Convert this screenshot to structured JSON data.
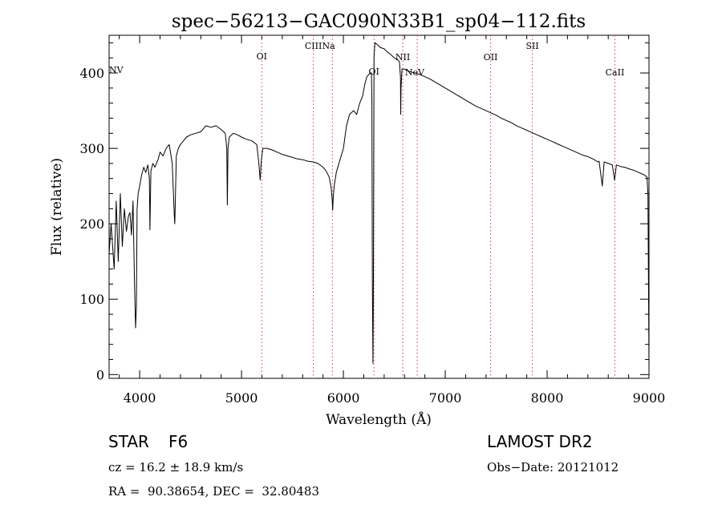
{
  "chart_data": {
    "type": "line",
    "title": "spec−56213−GAC090N33B1_sp04−112.fits",
    "xlabel": "Wavelength (Å)",
    "ylabel": "Flux (relative)",
    "xlim": [
      3700,
      9000
    ],
    "ylim": [
      -5,
      450
    ],
    "xticks": [
      4000,
      5000,
      6000,
      7000,
      8000,
      9000
    ],
    "yticks": [
      0,
      100,
      200,
      300,
      400
    ],
    "grid": false,
    "series": [
      {
        "color": "#000000",
        "x": [
          3700,
          3720,
          3750,
          3770,
          3790,
          3810,
          3830,
          3850,
          3870,
          3890,
          3905,
          3920,
          3935,
          3950,
          3960,
          3968,
          3975,
          3985,
          4000,
          4020,
          4040,
          4060,
          4080,
          4095,
          4101,
          4110,
          4130,
          4150,
          4180,
          4200,
          4230,
          4260,
          4290,
          4320,
          4340,
          4345,
          4360,
          4380,
          4400,
          4430,
          4460,
          4500,
          4550,
          4600,
          4650,
          4700,
          4750,
          4800,
          4840,
          4855,
          4861,
          4867,
          4880,
          4920,
          4960,
          5000,
          5050,
          5100,
          5150,
          5170,
          5183,
          5195,
          5210,
          5250,
          5300,
          5350,
          5400,
          5450,
          5500,
          5550,
          5600,
          5650,
          5700,
          5750,
          5800,
          5830,
          5860,
          5880,
          5890,
          5895,
          5900,
          5910,
          5930,
          5960,
          6000,
          6030,
          6060,
          6100,
          6130,
          6160,
          6190,
          6210,
          6230,
          6250,
          6265,
          6275,
          6280,
          6285,
          6290,
          6295,
          6300,
          6310,
          6330,
          6360,
          6400,
          6430,
          6460,
          6500,
          6530,
          6550,
          6560,
          6563,
          6566,
          6575,
          6600,
          6650,
          6700,
          6750,
          6800,
          6850,
          6900,
          6950,
          7000,
          7050,
          7100,
          7150,
          7200,
          7250,
          7300,
          7350,
          7400,
          7450,
          7500,
          7550,
          7600,
          7650,
          7700,
          7750,
          7800,
          7850,
          7900,
          7950,
          8000,
          8050,
          8100,
          8150,
          8200,
          8250,
          8300,
          8350,
          8400,
          8450,
          8498,
          8510,
          8542,
          8560,
          8600,
          8640,
          8662,
          8680,
          8720,
          8760,
          8800,
          8850,
          8900,
          8950,
          8980,
          8990,
          9000
        ],
        "y": [
          160,
          200,
          140,
          230,
          150,
          240,
          170,
          220,
          190,
          210,
          215,
          185,
          230,
          120,
          62,
          90,
          220,
          240,
          250,
          265,
          275,
          268,
          278,
          260,
          192,
          270,
          280,
          275,
          285,
          295,
          290,
          300,
          305,
          280,
          210,
          200,
          290,
          300,
          305,
          310,
          315,
          318,
          320,
          322,
          330,
          328,
          330,
          325,
          320,
          300,
          225,
          300,
          315,
          320,
          318,
          315,
          312,
          310,
          305,
          280,
          258,
          285,
          300,
          300,
          298,
          295,
          292,
          290,
          288,
          286,
          285,
          283,
          282,
          280,
          275,
          270,
          262,
          248,
          232,
          218,
          235,
          250,
          268,
          282,
          300,
          330,
          345,
          350,
          345,
          360,
          370,
          385,
          395,
          398,
          400,
          400,
          360,
          120,
          15,
          130,
          420,
          440,
          438,
          434,
          432,
          428,
          425,
          420,
          418,
          415,
          395,
          345,
          380,
          405,
          405,
          402,
          400,
          398,
          395,
          392,
          388,
          384,
          380,
          376,
          372,
          368,
          364,
          360,
          356,
          353,
          350,
          347,
          344,
          340,
          337,
          334,
          330,
          327,
          324,
          321,
          318,
          315,
          312,
          309,
          306,
          303,
          300,
          297,
          294,
          291,
          289,
          286,
          282,
          283,
          250,
          282,
          280,
          278,
          258,
          278,
          276,
          275,
          273,
          271,
          268,
          265,
          262,
          240,
          10
        ]
      }
    ],
    "line_labels": [
      {
        "label": "NV",
        "x": 3709,
        "text_x": 3700,
        "text_y": 400,
        "anchor": "start",
        "marker": false
      },
      {
        "label": "OI",
        "x": 5199,
        "text_y": 418,
        "anchor": "middle",
        "marker": true
      },
      {
        "label": "CIII",
        "x": 5705,
        "text_x": 5705,
        "text_y": 432,
        "anchor": "middle",
        "marker": true
      },
      {
        "label": "Na",
        "x": 5892,
        "text_x": 5855,
        "text_y": 432,
        "anchor": "middle",
        "marker": true
      },
      {
        "label": "OI",
        "x": 6300,
        "text_y": 398,
        "anchor": "middle",
        "marker": true
      },
      {
        "label": "NII",
        "x": 6583,
        "text_x": 6583,
        "text_y": 417,
        "anchor": "middle",
        "marker": true
      },
      {
        "label": "NeV",
        "x": 6725,
        "text_x": 6700,
        "text_y": 397,
        "anchor": "middle",
        "marker": true
      },
      {
        "label": "OII",
        "x": 7445,
        "text_y": 417,
        "anchor": "middle",
        "marker": true
      },
      {
        "label": "SII",
        "x": 7855,
        "text_y": 432,
        "anchor": "middle",
        "marker": true
      },
      {
        "label": "CaII",
        "x": 8665,
        "text_y": 397,
        "anchor": "middle",
        "marker": true
      }
    ]
  },
  "info": {
    "object_class": "STAR",
    "subclass": "F6",
    "survey": "LAMOST DR2",
    "cz_line": "cz = 16.2 ± 18.9 km/s",
    "obs_date_line": "Obs−Date: 20121012",
    "coords_line": "RA =  90.38654, DEC =  32.80483"
  }
}
